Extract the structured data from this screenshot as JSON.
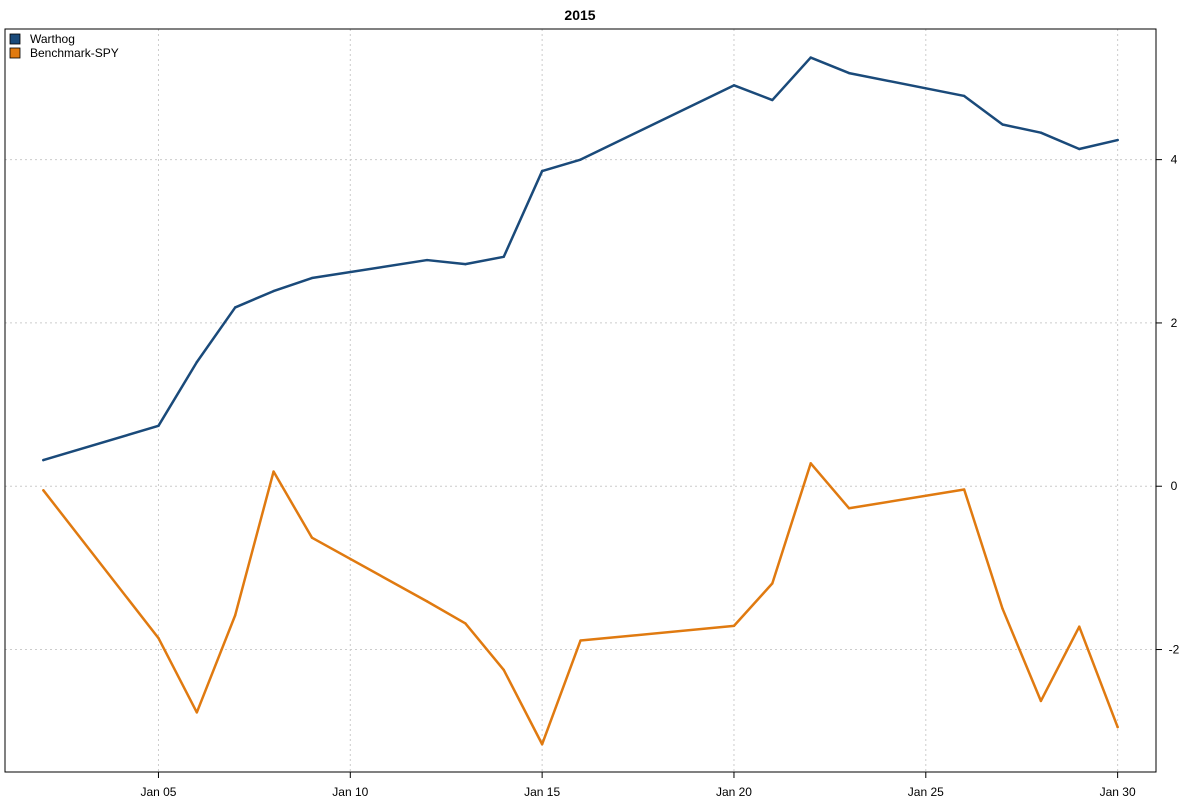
{
  "chart_data": {
    "type": "line",
    "title": "2015",
    "xlabel": "",
    "ylabel": "",
    "x_axis": "date",
    "x": [
      "2015-01-02",
      "2015-01-05",
      "2015-01-06",
      "2015-01-07",
      "2015-01-08",
      "2015-01-09",
      "2015-01-12",
      "2015-01-13",
      "2015-01-14",
      "2015-01-15",
      "2015-01-16",
      "2015-01-20",
      "2015-01-21",
      "2015-01-22",
      "2015-01-23",
      "2015-01-26",
      "2015-01-27",
      "2015-01-28",
      "2015-01-29",
      "2015-01-30"
    ],
    "xlim": [
      "2015-01-01",
      "2015-01-31"
    ],
    "x_ticks": [
      {
        "date": "2015-01-05",
        "label": "Jan 05"
      },
      {
        "date": "2015-01-10",
        "label": "Jan 10"
      },
      {
        "date": "2015-01-15",
        "label": "Jan 15"
      },
      {
        "date": "2015-01-20",
        "label": "Jan 20"
      },
      {
        "date": "2015-01-25",
        "label": "Jan 25"
      },
      {
        "date": "2015-01-30",
        "label": "Jan 30"
      }
    ],
    "ylim": [
      -3.5,
      5.6
    ],
    "y_ticks": [
      -2,
      0,
      2,
      4
    ],
    "y_axis_side": "right",
    "grid": true,
    "legend_position": "top-left",
    "series": [
      {
        "name": "Warthog",
        "color": "#1a4a7a",
        "values": [
          0.32,
          0.74,
          1.52,
          2.19,
          2.39,
          2.55,
          2.77,
          2.72,
          2.81,
          3.86,
          4.0,
          4.91,
          4.73,
          5.25,
          5.06,
          4.78,
          4.43,
          4.33,
          4.13,
          4.24
        ]
      },
      {
        "name": "Benchmark-SPY",
        "color": "#e07a10",
        "values": [
          -0.05,
          -1.86,
          -2.77,
          -1.58,
          0.18,
          -0.63,
          -1.41,
          -1.68,
          -2.25,
          -3.16,
          -1.89,
          -1.71,
          -1.19,
          0.28,
          -0.27,
          -0.04,
          -1.5,
          -2.63,
          -1.72,
          -2.95
        ]
      }
    ]
  }
}
